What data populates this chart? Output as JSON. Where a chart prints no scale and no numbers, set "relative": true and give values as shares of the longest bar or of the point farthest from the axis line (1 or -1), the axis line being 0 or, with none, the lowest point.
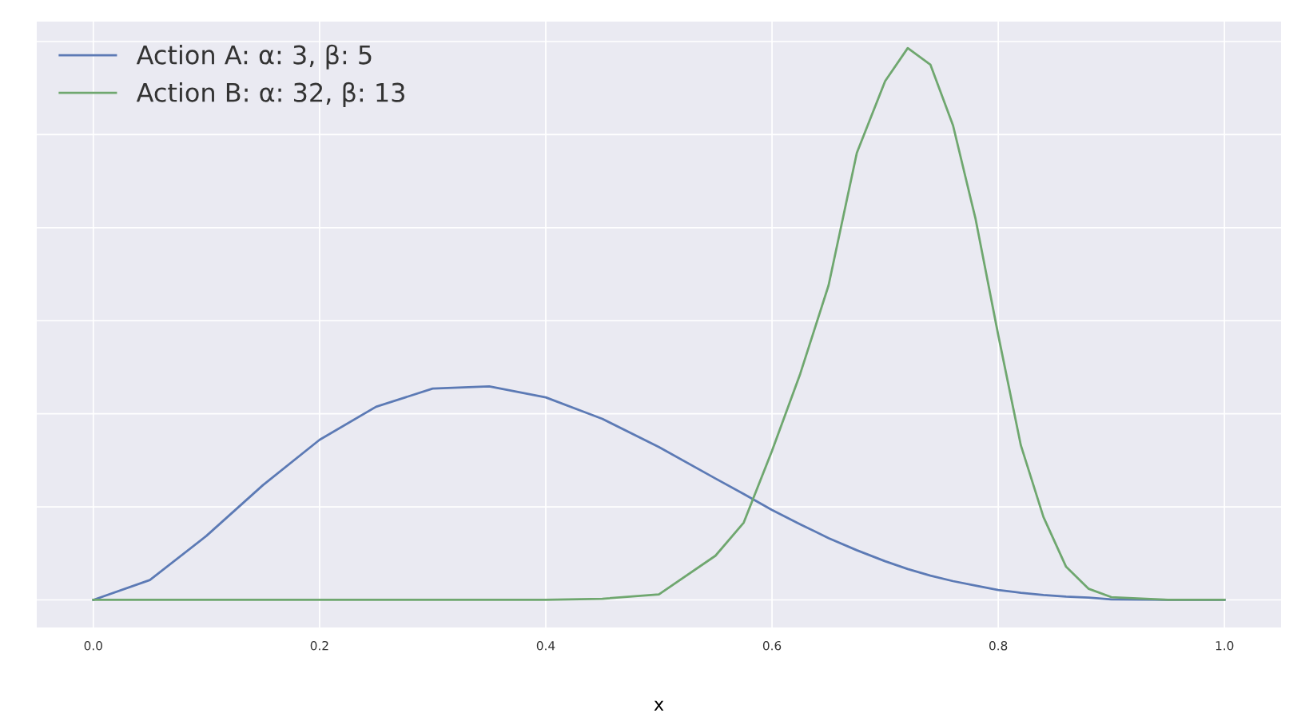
{
  "chart_data": {
    "type": "line",
    "relative": true,
    "xlabel": "x",
    "x": [
      0.0,
      0.05,
      0.1,
      0.15,
      0.2,
      0.25,
      0.3,
      0.35,
      0.4,
      0.45,
      0.5,
      0.55,
      0.575,
      0.6,
      0.625,
      0.65,
      0.675,
      0.7,
      0.72,
      0.74,
      0.76,
      0.78,
      0.8,
      0.82,
      0.84,
      0.86,
      0.88,
      0.9,
      0.95,
      1.0
    ],
    "series": [
      {
        "name": "Action A: α: 3, β: 5",
        "color": "#5c7ab5",
        "values": [
          0.0,
          0.036,
          0.116,
          0.208,
          0.29,
          0.35,
          0.383,
          0.387,
          0.367,
          0.328,
          0.277,
          0.22,
          0.192,
          0.163,
          0.137,
          0.112,
          0.09,
          0.07,
          0.056,
          0.044,
          0.034,
          0.026,
          0.018,
          0.013,
          0.009,
          0.006,
          0.004,
          0.001,
          0.0,
          0.0
        ]
      },
      {
        "name": "Action B: α: 32, β: 13",
        "color": "#6fa76f",
        "values": [
          0.0,
          0.0,
          0.0,
          0.0,
          0.0,
          0.0,
          0.0,
          0.0,
          0.0,
          0.002,
          0.01,
          0.08,
          0.14,
          0.27,
          0.41,
          0.57,
          0.81,
          0.94,
          1.0,
          0.97,
          0.86,
          0.69,
          0.48,
          0.28,
          0.15,
          0.06,
          0.02,
          0.005,
          0.0,
          0.0
        ]
      }
    ],
    "xlim": [
      -0.05,
      1.05
    ],
    "xticks": [
      {
        "value": 0.0,
        "label": "0.0"
      },
      {
        "value": 0.2,
        "label": "0.2"
      },
      {
        "value": 0.4,
        "label": "0.4"
      },
      {
        "value": 0.6,
        "label": "0.6"
      },
      {
        "value": 0.8,
        "label": "0.8"
      },
      {
        "value": 1.0,
        "label": "1.0"
      }
    ],
    "grid": true,
    "legend": "top left",
    "tick_labels": "x",
    "line_style": "solid",
    "marker": "none"
  }
}
